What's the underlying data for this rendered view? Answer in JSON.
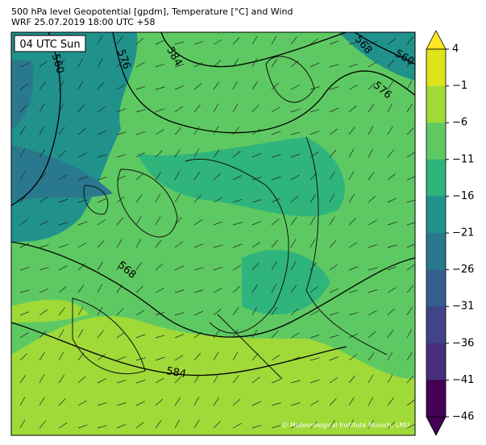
{
  "header": {
    "title": "500 hPa level Geopotential [gpdm], Temperature [°C] and Wind",
    "subtitle": "WRF 25.07.2019 18:00 UTC +58"
  },
  "map": {
    "time_label": "04 UTC Sun",
    "copyright": "© Meteorological Institute Munich, LMU",
    "contour_labels": [
      "560",
      "576",
      "584",
      "568",
      "560",
      "576",
      "568",
      "584"
    ]
  },
  "colorbar": {
    "labels": [
      "4",
      "−1",
      "−6",
      "−11",
      "−16",
      "−21",
      "−26",
      "−31",
      "−36",
      "−41",
      "−46"
    ],
    "top_color": "#fde725",
    "bottom_color": "#440154",
    "colors": [
      "#dde318",
      "#a0da39",
      "#5ec962",
      "#2fb47c",
      "#21918c",
      "#2a788e",
      "#355f8d",
      "#414487",
      "#472d7b",
      "#440154"
    ]
  }
}
